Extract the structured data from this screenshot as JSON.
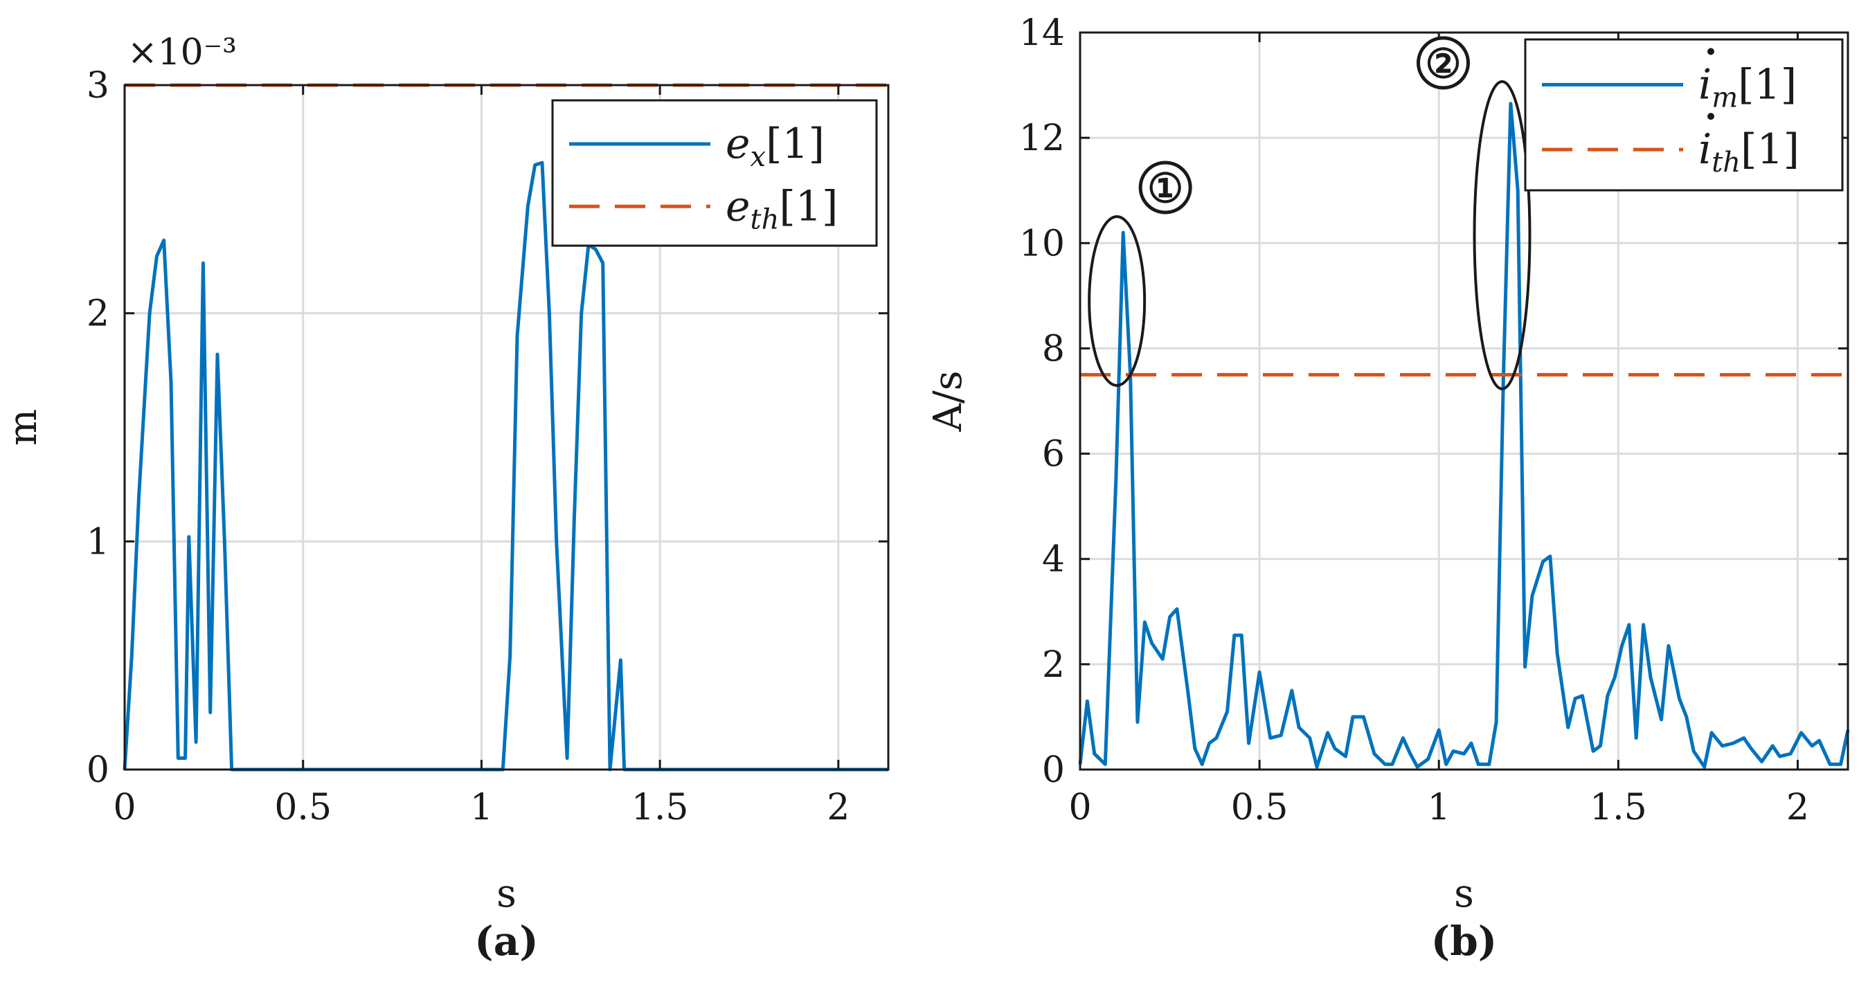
{
  "chart_data": [
    {
      "type": "line",
      "caption": "(a)",
      "xlabel": "s",
      "ylabel": "m",
      "multiplier": "×10⁻³",
      "xlim": [
        0,
        2.14
      ],
      "ylim": [
        0,
        3
      ],
      "xticks": [
        0,
        0.5,
        1,
        1.5,
        2
      ],
      "xtick_labels": [
        "0",
        "0.5",
        "1",
        "1.5",
        "2"
      ],
      "yticks": [
        0,
        1,
        2,
        3
      ],
      "ytick_labels": [
        "0",
        "1",
        "2",
        "3"
      ],
      "grid": true,
      "legend_position": "top-right",
      "series": [
        {
          "name": "e_x[1]",
          "legend_main": "e",
          "legend_sub": "x",
          "legend_suffix": "[1]",
          "style": "solid",
          "color": "#0072BD",
          "x": [
            0,
            0.02,
            0.04,
            0.07,
            0.09,
            0.11,
            0.13,
            0.15,
            0.17,
            0.18,
            0.2,
            0.22,
            0.24,
            0.26,
            0.28,
            0.3,
            0.33,
            1.06,
            1.08,
            1.1,
            1.13,
            1.15,
            1.17,
            1.19,
            1.21,
            1.24,
            1.26,
            1.28,
            1.3,
            1.32,
            1.34,
            1.36,
            1.39,
            1.4,
            2.14
          ],
          "y": [
            0,
            0.5,
            1.2,
            2.0,
            2.25,
            2.32,
            1.7,
            0.05,
            0.05,
            1.02,
            0.12,
            2.22,
            0.25,
            1.82,
            1.0,
            0,
            0,
            0,
            0.5,
            1.9,
            2.47,
            2.65,
            2.66,
            2.0,
            1.0,
            0.05,
            1.1,
            2.0,
            2.3,
            2.28,
            2.22,
            0,
            0.48,
            0,
            0
          ]
        },
        {
          "name": "e_th[1]",
          "legend_main": "e",
          "legend_sub": "th",
          "legend_suffix": "[1]",
          "style": "dashed",
          "color": "#D95319",
          "x": [
            0,
            2.14
          ],
          "y": [
            3,
            3
          ]
        }
      ]
    },
    {
      "type": "line",
      "caption": "(b)",
      "xlabel": "s",
      "ylabel": "A/s",
      "xlim": [
        0,
        2.14
      ],
      "ylim": [
        0,
        14
      ],
      "xticks": [
        0,
        0.5,
        1,
        1.5,
        2
      ],
      "xtick_labels": [
        "0",
        "0.5",
        "1",
        "1.5",
        "2"
      ],
      "yticks": [
        0,
        2,
        4,
        6,
        8,
        10,
        12,
        14
      ],
      "ytick_labels": [
        "0",
        "2",
        "4",
        "6",
        "8",
        "10",
        "12",
        "14"
      ],
      "grid": true,
      "legend_position": "top-right",
      "annotations": [
        {
          "label": "①",
          "x": 0.118,
          "y": 8.9
        },
        {
          "label": "②",
          "x": 1.18,
          "y": 10.15
        }
      ],
      "series": [
        {
          "name": "i̇_m[1]",
          "legend_main": "i",
          "legend_sub": "m",
          "legend_suffix": "[1]",
          "style": "solid",
          "color": "#0072BD",
          "x": [
            0,
            0.02,
            0.04,
            0.07,
            0.1,
            0.12,
            0.14,
            0.16,
            0.18,
            0.2,
            0.23,
            0.25,
            0.27,
            0.3,
            0.32,
            0.34,
            0.36,
            0.38,
            0.41,
            0.43,
            0.45,
            0.47,
            0.5,
            0.53,
            0.56,
            0.59,
            0.61,
            0.64,
            0.66,
            0.69,
            0.71,
            0.74,
            0.76,
            0.79,
            0.82,
            0.85,
            0.87,
            0.9,
            0.92,
            0.94,
            0.97,
            1.0,
            1.02,
            1.04,
            1.07,
            1.09,
            1.11,
            1.14,
            1.16,
            1.18,
            1.2,
            1.22,
            1.24,
            1.26,
            1.29,
            1.31,
            1.33,
            1.36,
            1.38,
            1.4,
            1.43,
            1.45,
            1.47,
            1.49,
            1.51,
            1.53,
            1.55,
            1.57,
            1.59,
            1.62,
            1.64,
            1.67,
            1.69,
            1.71,
            1.74,
            1.76,
            1.79,
            1.82,
            1.85,
            1.87,
            1.9,
            1.93,
            1.95,
            1.98,
            2.01,
            2.04,
            2.06,
            2.09,
            2.12,
            2.14
          ],
          "y": [
            0.1,
            1.3,
            0.3,
            0.1,
            5.5,
            10.2,
            7.5,
            0.9,
            2.8,
            2.4,
            2.1,
            2.9,
            3.05,
            1.5,
            0.4,
            0.1,
            0.5,
            0.6,
            1.1,
            2.55,
            2.55,
            0.5,
            1.85,
            0.6,
            0.65,
            1.5,
            0.8,
            0.6,
            0.05,
            0.7,
            0.4,
            0.25,
            1.0,
            1.0,
            0.3,
            0.1,
            0.1,
            0.6,
            0.3,
            0.05,
            0.2,
            0.75,
            0.1,
            0.35,
            0.3,
            0.5,
            0.1,
            0.1,
            0.9,
            7.5,
            12.65,
            11.0,
            1.95,
            3.3,
            3.95,
            4.05,
            2.2,
            0.8,
            1.35,
            1.4,
            0.35,
            0.45,
            1.4,
            1.75,
            2.35,
            2.75,
            0.6,
            2.75,
            1.75,
            0.95,
            2.35,
            1.35,
            1.0,
            0.35,
            0.05,
            0.7,
            0.45,
            0.5,
            0.6,
            0.4,
            0.15,
            0.45,
            0.25,
            0.3,
            0.7,
            0.45,
            0.55,
            0.1,
            0.1,
            0.75
          ]
        },
        {
          "name": "i̇_th[1]",
          "legend_main": "i",
          "legend_sub": "th",
          "legend_suffix": "[1]",
          "style": "dashed",
          "color": "#D95319",
          "x": [
            0,
            2.14
          ],
          "y": [
            7.5,
            7.5
          ]
        }
      ]
    }
  ]
}
